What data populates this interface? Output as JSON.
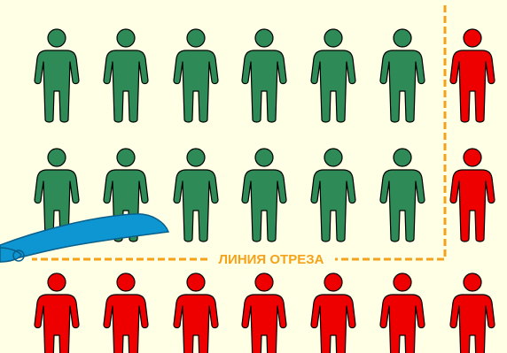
{
  "colors": {
    "background": "#ffffe6",
    "green": "#2e8b57",
    "red": "#ee0000",
    "outline": "#000000",
    "cut_line": "#f5a21b",
    "blade": "#0e96d2",
    "blade_edge": "#0a5f8a"
  },
  "cut_line": {
    "label": "ЛИНИЯ ОТРЕЗА"
  },
  "rows": [
    [
      "green",
      "green",
      "green",
      "green",
      "green",
      "green",
      "red"
    ],
    [
      "green",
      "green",
      "green",
      "green",
      "green",
      "green",
      "red"
    ],
    [
      "red",
      "red",
      "red",
      "red",
      "red",
      "red",
      "red"
    ]
  ],
  "icons": {
    "person": "person-icon",
    "blade": "blade-icon"
  }
}
